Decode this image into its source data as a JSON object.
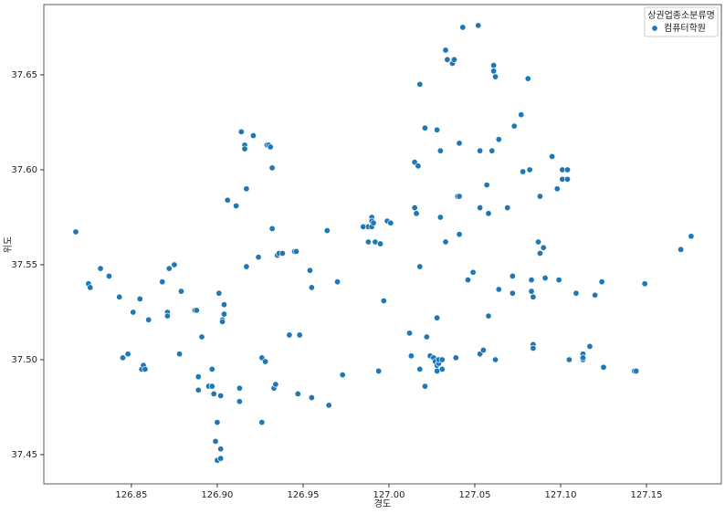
{
  "chart_data": {
    "type": "scatter",
    "x_label": "경도",
    "y_label": "위도",
    "legend_title": "상권업종소분류명",
    "legend": "upper right",
    "xlim": [
      126.799,
      127.1936
    ],
    "ylim": [
      37.4346,
      37.687
    ],
    "xticks": [
      126.85,
      {
        "value": 126.9,
        "label": "126.90"
      },
      126.95,
      {
        "value": 127.0,
        "label": "127.00"
      },
      127.05,
      {
        "value": 127.1,
        "label": "127.10"
      },
      127.15
    ],
    "yticks": [
      37.45,
      {
        "value": 37.5,
        "label": "37.50"
      },
      37.55,
      {
        "value": 37.6,
        "label": "37.60"
      },
      37.65
    ],
    "x": [
      126.8176,
      126.825,
      126.826,
      126.832,
      126.837,
      126.843,
      126.851,
      126.855,
      126.86,
      126.845,
      126.848,
      126.856,
      126.857,
      126.858,
      126.868,
      126.872,
      126.875,
      126.871,
      126.871,
      126.879,
      126.878,
      126.887,
      126.888,
      126.891,
      126.889,
      126.889,
      126.895,
      126.897,
      126.897,
      126.898,
      126.902,
      126.9,
      126.899,
      126.9,
      126.902,
      126.902,
      126.901,
      126.904,
      126.903,
      126.904,
      126.903,
      126.906,
      126.911,
      126.914,
      126.916,
      126.916,
      126.917,
      126.921,
      126.917,
      126.924,
      126.913,
      126.913,
      126.926,
      126.928,
      126.928,
      126.926,
      126.929,
      126.93,
      126.931,
      126.932,
      126.932,
      126.935,
      126.936,
      126.938,
      126.933,
      126.934,
      126.942,
      126.948,
      126.945,
      126.946,
      126.947,
      126.954,
      126.955,
      126.955,
      126.964,
      126.97,
      126.965,
      126.973,
      126.985,
      126.988,
      126.99,
      126.99,
      126.99,
      126.988,
      126.992,
      126.991,
      126.995,
      126.999,
      127.001,
      126.997,
      126.994,
      127.012,
      127.015,
      127.017,
      127.015,
      127.016,
      127.018,
      127.018,
      127.013,
      127.018,
      127.021,
      127.021,
      127.022,
      127.024,
      127.026,
      127.027,
      127.028,
      127.029,
      127.029,
      127.031,
      127.031,
      127.028,
      127.028,
      127.028,
      127.03,
      127.03,
      127.033,
      127.033,
      127.034,
      127.037,
      127.038,
      127.039,
      127.041,
      127.04,
      127.041,
      127.041,
      127.043,
      127.046,
      127.049,
      127.052,
      127.053,
      127.053,
      127.053,
      127.055,
      127.057,
      127.058,
      127.058,
      127.06,
      127.061,
      127.061,
      127.062,
      127.062,
      127.064,
      127.064,
      127.069,
      127.072,
      127.072,
      127.073,
      127.077,
      127.078,
      127.081,
      127.082,
      127.083,
      127.083,
      127.084,
      127.084,
      127.084,
      127.087,
      127.088,
      127.088,
      127.09,
      127.091,
      127.095,
      127.098,
      127.099,
      127.101,
      127.101,
      127.104,
      127.104,
      127.105,
      127.109,
      127.113,
      127.113,
      127.113,
      127.117,
      127.12,
      127.124,
      127.125,
      127.143,
      127.144,
      127.149,
      127.17,
      127.176
    ],
    "series": [
      {
        "name": "컴퓨터학원",
        "color": "#1f77b4",
        "values": [
          37.5673,
          37.54,
          37.538,
          37.548,
          37.544,
          37.533,
          37.525,
          37.532,
          37.521,
          37.501,
          37.503,
          37.495,
          37.497,
          37.495,
          37.541,
          37.548,
          37.55,
          37.525,
          37.523,
          37.536,
          37.503,
          37.526,
          37.526,
          37.512,
          37.491,
          37.484,
          37.486,
          37.486,
          37.495,
          37.482,
          37.481,
          37.467,
          37.457,
          37.447,
          37.448,
          37.453,
          37.535,
          37.529,
          37.521,
          37.524,
          37.52,
          37.584,
          37.581,
          37.62,
          37.613,
          37.611,
          37.59,
          37.618,
          37.549,
          37.554,
          37.485,
          37.478,
          37.501,
          37.499,
          37.499,
          37.467,
          37.613,
          37.613,
          37.612,
          37.601,
          37.569,
          37.555,
          37.556,
          37.556,
          37.485,
          37.487,
          37.513,
          37.513,
          37.557,
          37.557,
          37.482,
          37.547,
          37.538,
          37.48,
          37.568,
          37.541,
          37.476,
          37.492,
          37.57,
          37.57,
          37.575,
          37.57,
          37.573,
          37.562,
          37.562,
          37.572,
          37.561,
          37.573,
          37.572,
          37.531,
          37.494,
          37.514,
          37.604,
          37.602,
          37.58,
          37.577,
          37.645,
          37.549,
          37.502,
          37.495,
          37.622,
          37.486,
          37.512,
          37.502,
          37.501,
          37.499,
          37.497,
          37.498,
          37.5,
          37.5,
          37.495,
          37.494,
          37.621,
          37.522,
          37.61,
          37.575,
          37.562,
          37.663,
          37.658,
          37.656,
          37.658,
          37.501,
          37.614,
          37.586,
          37.586,
          37.566,
          37.675,
          37.542,
          37.546,
          37.676,
          37.61,
          37.58,
          37.503,
          37.505,
          37.592,
          37.577,
          37.523,
          37.61,
          37.655,
          37.652,
          37.649,
          37.5,
          37.616,
          37.537,
          37.58,
          37.535,
          37.544,
          37.623,
          37.629,
          37.599,
          37.648,
          37.6,
          37.536,
          37.542,
          37.508,
          37.506,
          37.533,
          37.562,
          37.586,
          37.556,
          37.559,
          37.543,
          37.607,
          37.59,
          37.542,
          37.6,
          37.595,
          37.6,
          37.595,
          37.5,
          37.535,
          37.5,
          37.503,
          37.501,
          37.507,
          37.534,
          37.541,
          37.496,
          37.494,
          37.494,
          37.54,
          37.558,
          37.565
        ]
      }
    ]
  }
}
